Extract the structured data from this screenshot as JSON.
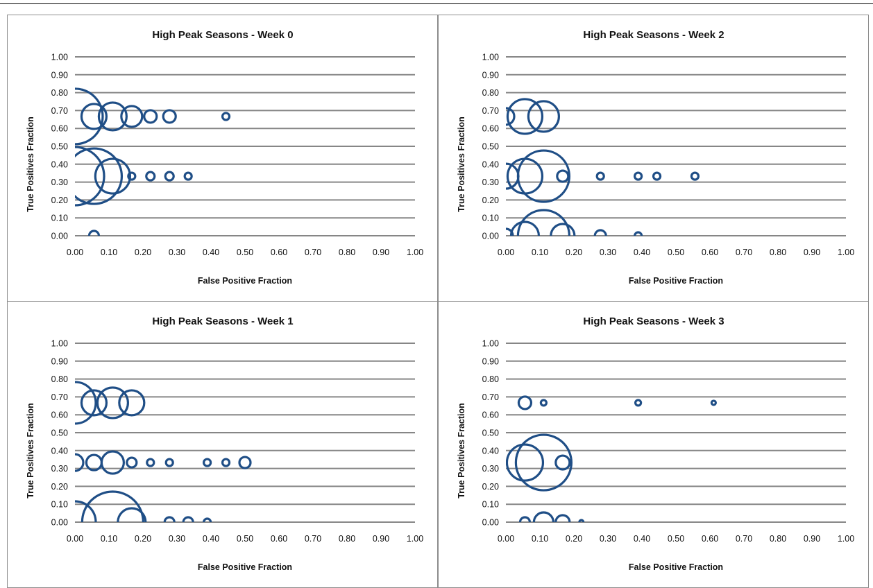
{
  "chart_data": [
    {
      "type": "scatter",
      "subtype": "bubble",
      "title": "High Peak Seasons - Week 0",
      "xlabel": "False Positive Fraction",
      "ylabel": "True Positives Fraction",
      "xlim": [
        0,
        1
      ],
      "ylim": [
        0,
        1
      ],
      "xticks": [
        "0.00",
        "0.10",
        "0.20",
        "0.30",
        "0.40",
        "0.50",
        "0.60",
        "0.70",
        "0.80",
        "0.90",
        "1.00"
      ],
      "yticks": [
        "0.00",
        "0.10",
        "0.20",
        "0.30",
        "0.40",
        "0.50",
        "0.60",
        "0.70",
        "0.80",
        "0.90",
        "1.00"
      ],
      "grid": true,
      "color": "#1f4e86",
      "points": [
        {
          "x": 0.0,
          "y": 0.667,
          "size": 40
        },
        {
          "x": 0.056,
          "y": 0.667,
          "size": 18
        },
        {
          "x": 0.111,
          "y": 0.667,
          "size": 20
        },
        {
          "x": 0.167,
          "y": 0.667,
          "size": 15
        },
        {
          "x": 0.222,
          "y": 0.667,
          "size": 9
        },
        {
          "x": 0.278,
          "y": 0.667,
          "size": 9
        },
        {
          "x": 0.444,
          "y": 0.667,
          "size": 5
        },
        {
          "x": 0.0,
          "y": 0.333,
          "size": 42
        },
        {
          "x": 0.056,
          "y": 0.333,
          "size": 40
        },
        {
          "x": 0.111,
          "y": 0.333,
          "size": 25
        },
        {
          "x": 0.167,
          "y": 0.333,
          "size": 5
        },
        {
          "x": 0.222,
          "y": 0.333,
          "size": 6
        },
        {
          "x": 0.278,
          "y": 0.333,
          "size": 6
        },
        {
          "x": 0.333,
          "y": 0.333,
          "size": 5
        },
        {
          "x": 0.056,
          "y": 0.0,
          "size": 7
        }
      ]
    },
    {
      "type": "scatter",
      "subtype": "bubble",
      "title": "High Peak Seasons - Week 2",
      "xlabel": "False Positive Fraction",
      "ylabel": "True Positives Fraction",
      "xlim": [
        0,
        1
      ],
      "ylim": [
        0,
        1
      ],
      "xticks": [
        "0.00",
        "0.10",
        "0.20",
        "0.30",
        "0.40",
        "0.50",
        "0.60",
        "0.70",
        "0.80",
        "0.90",
        "1.00"
      ],
      "yticks": [
        "0.00",
        "0.10",
        "0.20",
        "0.30",
        "0.40",
        "0.50",
        "0.60",
        "0.70",
        "0.80",
        "0.90",
        "1.00"
      ],
      "grid": true,
      "color": "#1f4e86",
      "points": [
        {
          "x": 0.0,
          "y": 0.667,
          "size": 12
        },
        {
          "x": 0.056,
          "y": 0.667,
          "size": 25
        },
        {
          "x": 0.111,
          "y": 0.667,
          "size": 22
        },
        {
          "x": 0.0,
          "y": 0.333,
          "size": 18
        },
        {
          "x": 0.056,
          "y": 0.333,
          "size": 25
        },
        {
          "x": 0.111,
          "y": 0.333,
          "size": 37
        },
        {
          "x": 0.167,
          "y": 0.333,
          "size": 8
        },
        {
          "x": 0.278,
          "y": 0.333,
          "size": 5
        },
        {
          "x": 0.389,
          "y": 0.333,
          "size": 5
        },
        {
          "x": 0.444,
          "y": 0.333,
          "size": 5
        },
        {
          "x": 0.556,
          "y": 0.333,
          "size": 5
        },
        {
          "x": 0.0,
          "y": 0.0,
          "size": 10
        },
        {
          "x": 0.056,
          "y": 0.0,
          "size": 20
        },
        {
          "x": 0.111,
          "y": 0.0,
          "size": 37
        },
        {
          "x": 0.167,
          "y": 0.0,
          "size": 17
        },
        {
          "x": 0.278,
          "y": 0.0,
          "size": 8
        },
        {
          "x": 0.389,
          "y": 0.0,
          "size": 5
        }
      ]
    },
    {
      "type": "scatter",
      "subtype": "bubble",
      "title": "High Peak Seasons - Week 1",
      "xlabel": "False Positive Fraction",
      "ylabel": "True Positives Fraction",
      "xlim": [
        0,
        1
      ],
      "ylim": [
        0,
        1
      ],
      "xticks": [
        "0.00",
        "0.10",
        "0.20",
        "0.30",
        "0.40",
        "0.50",
        "0.60",
        "0.70",
        "0.80",
        "0.90",
        "1.00"
      ],
      "yticks": [
        "0.00",
        "0.10",
        "0.20",
        "0.30",
        "0.40",
        "0.50",
        "0.60",
        "0.70",
        "0.80",
        "0.90",
        "1.00"
      ],
      "grid": true,
      "color": "#1f4e86",
      "points": [
        {
          "x": 0.0,
          "y": 0.667,
          "size": 30
        },
        {
          "x": 0.056,
          "y": 0.667,
          "size": 18
        },
        {
          "x": 0.111,
          "y": 0.667,
          "size": 22
        },
        {
          "x": 0.167,
          "y": 0.667,
          "size": 18
        },
        {
          "x": 0.0,
          "y": 0.333,
          "size": 12
        },
        {
          "x": 0.056,
          "y": 0.333,
          "size": 11
        },
        {
          "x": 0.111,
          "y": 0.333,
          "size": 16
        },
        {
          "x": 0.167,
          "y": 0.333,
          "size": 7
        },
        {
          "x": 0.222,
          "y": 0.333,
          "size": 5
        },
        {
          "x": 0.278,
          "y": 0.333,
          "size": 5
        },
        {
          "x": 0.389,
          "y": 0.333,
          "size": 5
        },
        {
          "x": 0.444,
          "y": 0.333,
          "size": 5
        },
        {
          "x": 0.5,
          "y": 0.333,
          "size": 8
        },
        {
          "x": 0.0,
          "y": 0.0,
          "size": 30
        },
        {
          "x": 0.111,
          "y": 0.0,
          "size": 44
        },
        {
          "x": 0.167,
          "y": 0.0,
          "size": 20
        },
        {
          "x": 0.278,
          "y": 0.0,
          "size": 7
        },
        {
          "x": 0.333,
          "y": 0.0,
          "size": 7
        },
        {
          "x": 0.389,
          "y": 0.0,
          "size": 5
        }
      ]
    },
    {
      "type": "scatter",
      "subtype": "bubble",
      "title": "High Peak Seasons - Week 3",
      "xlabel": "False Positive Fraction",
      "ylabel": "True Positives Fraction",
      "xlim": [
        0,
        1
      ],
      "ylim": [
        0,
        1
      ],
      "xticks": [
        "0.00",
        "0.10",
        "0.20",
        "0.30",
        "0.40",
        "0.50",
        "0.60",
        "0.70",
        "0.80",
        "0.90",
        "1.00"
      ],
      "yticks": [
        "0.00",
        "0.10",
        "0.20",
        "0.30",
        "0.40",
        "0.50",
        "0.60",
        "0.70",
        "0.80",
        "0.90",
        "1.00"
      ],
      "grid": true,
      "color": "#1f4e86",
      "points": [
        {
          "x": 0.056,
          "y": 0.667,
          "size": 9
        },
        {
          "x": 0.111,
          "y": 0.667,
          "size": 4
        },
        {
          "x": 0.389,
          "y": 0.667,
          "size": 4
        },
        {
          "x": 0.611,
          "y": 0.667,
          "size": 3
        },
        {
          "x": 0.056,
          "y": 0.333,
          "size": 26
        },
        {
          "x": 0.111,
          "y": 0.333,
          "size": 40
        },
        {
          "x": 0.167,
          "y": 0.333,
          "size": 10
        },
        {
          "x": 0.056,
          "y": 0.0,
          "size": 7
        },
        {
          "x": 0.111,
          "y": 0.0,
          "size": 14
        },
        {
          "x": 0.167,
          "y": 0.0,
          "size": 10
        },
        {
          "x": 0.222,
          "y": 0.0,
          "size": 3
        }
      ]
    }
  ]
}
